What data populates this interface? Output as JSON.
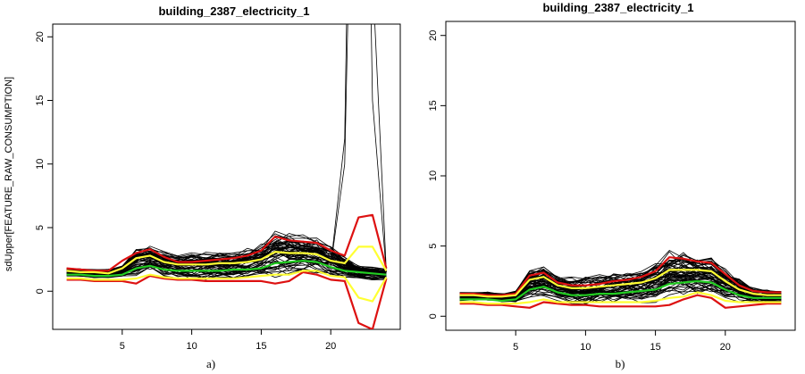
{
  "chart_data": [
    {
      "type": "line",
      "title": "building_2387_electricity_1",
      "ylabel": "sdUpper[FEATURE_RAW_CONSUMPTION]",
      "xlabel": "",
      "caption": "a)",
      "xlim": [
        0,
        25
      ],
      "ylim": [
        -3,
        21
      ],
      "x_ticks": [
        5,
        10,
        15,
        20
      ],
      "y_ticks": [
        0,
        5,
        10,
        15,
        20
      ],
      "grid": false,
      "bundle": {
        "color": "#000000",
        "mean": [
          1.5,
          1.5,
          1.4,
          1.4,
          1.6,
          2.3,
          2.5,
          2.2,
          2.0,
          2.0,
          2.0,
          2.0,
          2.1,
          2.2,
          2.4,
          3.0,
          2.9,
          2.9,
          2.8,
          2.3,
          1.9,
          1.5,
          1.4,
          1.3
        ],
        "spread": [
          0.3,
          0.3,
          0.3,
          0.3,
          0.4,
          1.0,
          1.0,
          0.9,
          0.9,
          1.0,
          1.0,
          1.0,
          1.0,
          1.1,
          1.3,
          1.7,
          1.5,
          1.4,
          1.3,
          1.1,
          0.8,
          0.5,
          0.5,
          0.4
        ],
        "count": 60
      },
      "spikes": [
        {
          "x": [
            20,
            21,
            22,
            23,
            24
          ],
          "y": [
            2.0,
            10,
            60,
            25,
            1.5
          ],
          "color": "#000000"
        },
        {
          "x": [
            20,
            21,
            22,
            23,
            24
          ],
          "y": [
            2.0,
            12,
            80,
            15,
            1.5
          ],
          "color": "#000000"
        }
      ],
      "series": [
        {
          "color": "#dd1111",
          "values": [
            1.8,
            1.7,
            1.6,
            1.6,
            2.4,
            3.0,
            3.3,
            2.7,
            2.3,
            2.3,
            2.4,
            2.5,
            2.6,
            2.8,
            3.2,
            4.3,
            4.0,
            3.9,
            3.8,
            3.2,
            2.8,
            5.8,
            6.0,
            1.8
          ]
        },
        {
          "color": "#dd1111",
          "values": [
            0.9,
            0.9,
            0.8,
            0.8,
            0.8,
            0.6,
            1.2,
            1.0,
            0.9,
            0.9,
            0.8,
            0.8,
            0.8,
            0.8,
            0.8,
            0.6,
            0.8,
            1.5,
            1.3,
            0.9,
            0.8,
            -2.5,
            -3.0,
            1.0
          ]
        },
        {
          "color": "#ffff33",
          "values": [
            1.6,
            1.5,
            1.5,
            1.4,
            1.8,
            2.6,
            2.8,
            2.3,
            2.1,
            2.1,
            2.1,
            2.2,
            2.2,
            2.3,
            2.5,
            3.1,
            3.0,
            3.0,
            2.9,
            2.4,
            2.2,
            3.5,
            3.5,
            1.6
          ]
        },
        {
          "color": "#ffff33",
          "values": [
            1.0,
            1.0,
            0.9,
            0.9,
            0.9,
            1.0,
            1.3,
            1.1,
            1.0,
            1.0,
            1.0,
            1.0,
            1.0,
            1.1,
            1.2,
            1.3,
            1.3,
            1.6,
            1.6,
            1.2,
            1.1,
            -0.5,
            -0.8,
            1.1
          ]
        },
        {
          "color": "#22cc22",
          "values": [
            1.3,
            1.3,
            1.2,
            1.2,
            1.3,
            1.8,
            2.0,
            1.7,
            1.6,
            1.6,
            1.6,
            1.6,
            1.7,
            1.7,
            1.8,
            2.2,
            2.3,
            2.4,
            2.3,
            1.9,
            1.6,
            1.5,
            1.4,
            1.3
          ]
        }
      ]
    },
    {
      "type": "line",
      "title": "building_2387_electricity_1",
      "ylabel": "",
      "xlabel": "",
      "caption": "b)",
      "xlim": [
        0,
        25
      ],
      "ylim": [
        -1,
        21
      ],
      "x_ticks": [
        5,
        10,
        15,
        20
      ],
      "y_ticks": [
        0,
        5,
        10,
        15,
        20
      ],
      "grid": false,
      "bundle": {
        "color": "#000000",
        "mean": [
          1.4,
          1.4,
          1.4,
          1.3,
          1.4,
          2.3,
          2.5,
          2.0,
          1.8,
          1.8,
          1.9,
          2.0,
          2.1,
          2.2,
          2.4,
          3.0,
          3.0,
          3.0,
          2.9,
          2.3,
          1.9,
          1.5,
          1.4,
          1.4
        ],
        "spread": [
          0.3,
          0.3,
          0.3,
          0.3,
          0.4,
          1.0,
          1.0,
          0.9,
          0.9,
          1.0,
          1.0,
          1.0,
          1.0,
          1.1,
          1.3,
          1.6,
          1.5,
          1.4,
          1.3,
          1.1,
          0.8,
          0.5,
          0.5,
          0.4
        ],
        "count": 60
      },
      "spikes": [],
      "series": [
        {
          "color": "#dd1111",
          "values": [
            1.6,
            1.6,
            1.5,
            1.5,
            1.6,
            2.9,
            3.1,
            2.4,
            2.2,
            2.2,
            2.3,
            2.5,
            2.6,
            2.8,
            3.2,
            4.2,
            4.1,
            3.9,
            3.8,
            3.0,
            2.2,
            1.8,
            1.7,
            1.7
          ]
        },
        {
          "color": "#dd1111",
          "values": [
            0.9,
            0.9,
            0.8,
            0.8,
            0.7,
            0.6,
            1.0,
            0.9,
            0.8,
            0.8,
            0.7,
            0.7,
            0.7,
            0.7,
            0.7,
            0.8,
            1.2,
            1.5,
            1.3,
            0.6,
            0.7,
            0.8,
            0.9,
            0.9
          ]
        },
        {
          "color": "#ffff33",
          "values": [
            1.5,
            1.5,
            1.4,
            1.4,
            1.5,
            2.6,
            2.8,
            2.2,
            2.0,
            2.0,
            2.1,
            2.2,
            2.3,
            2.4,
            2.7,
            3.3,
            3.3,
            3.3,
            3.2,
            2.5,
            1.9,
            1.6,
            1.5,
            1.5
          ]
        },
        {
          "color": "#ffff33",
          "values": [
            1.0,
            1.0,
            0.9,
            0.9,
            0.9,
            1.0,
            1.2,
            1.0,
            1.0,
            1.0,
            1.0,
            1.0,
            1.0,
            1.0,
            1.1,
            1.3,
            1.4,
            1.7,
            1.5,
            1.1,
            1.0,
            1.0,
            1.0,
            1.0
          ]
        },
        {
          "color": "#22cc22",
          "values": [
            1.2,
            1.2,
            1.2,
            1.1,
            1.2,
            1.9,
            2.1,
            1.7,
            1.5,
            1.5,
            1.6,
            1.6,
            1.7,
            1.8,
            1.9,
            2.3,
            2.4,
            2.5,
            2.4,
            1.9,
            1.5,
            1.3,
            1.3,
            1.3
          ]
        }
      ]
    }
  ]
}
